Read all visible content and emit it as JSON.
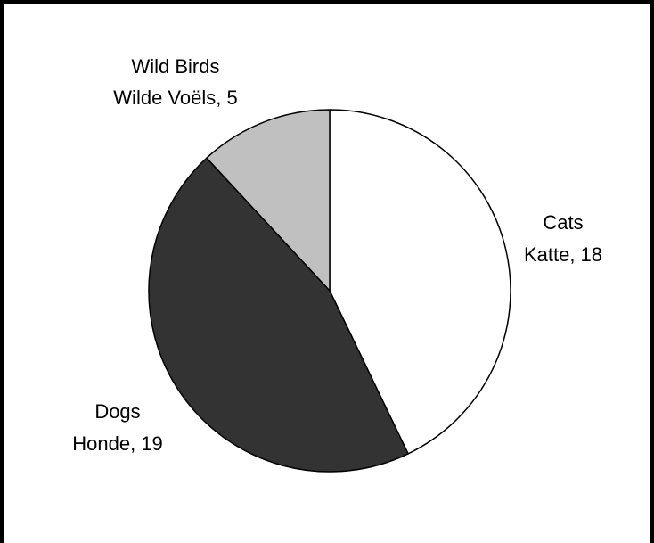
{
  "chart_data": {
    "type": "pie",
    "title": "",
    "slices": [
      {
        "name": "Cats",
        "name_alt": "Katte",
        "value": 18,
        "color": "#ffffff",
        "line1": "Cats",
        "line2": "Katte, 18"
      },
      {
        "name": "Dogs",
        "name_alt": "Honde",
        "value": 19,
        "color": "#333333",
        "line1": "Dogs",
        "line2": "Honde, 19"
      },
      {
        "name": "Wild Birds",
        "name_alt": "Wilde Voëls",
        "value": 5,
        "color": "#c0c0c0",
        "line1": "Wild Birds",
        "line2": "Wilde Voëls, 5"
      }
    ],
    "start_angle_deg": 0,
    "direction": "clockwise",
    "legend": "none"
  }
}
